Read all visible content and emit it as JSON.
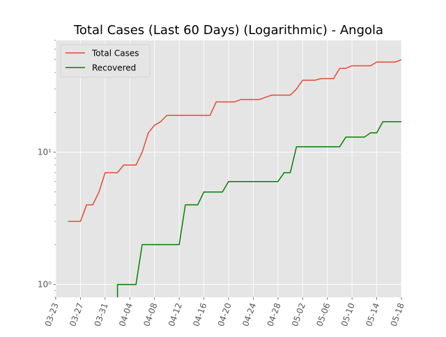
{
  "chart_data": {
    "type": "line",
    "title": "Total Cases (Last 60 Days) (Logarithmic) - Angola",
    "xlabel": "",
    "ylabel": "",
    "yscale": "log",
    "ylim": [
      0.8,
      70
    ],
    "xlim": [
      "2020-03-23",
      "2020-05-18"
    ],
    "grid": true,
    "legend": "top-left",
    "x_ticks": [
      "03-23",
      "03-27",
      "03-31",
      "04-04",
      "04-08",
      "04-12",
      "04-16",
      "04-20",
      "04-24",
      "04-28",
      "05-02",
      "05-06",
      "05-10",
      "05-14",
      "05-18"
    ],
    "y_ticks": [
      {
        "value": 1,
        "label": "10⁰"
      },
      {
        "value": 10,
        "label": "10¹"
      }
    ],
    "series": [
      {
        "name": "Total Cases",
        "color": "#E24A33",
        "points": [
          [
            "2020-03-25",
            3
          ],
          [
            "2020-03-27",
            3
          ],
          [
            "2020-03-28",
            4
          ],
          [
            "2020-03-29",
            4
          ],
          [
            "2020-03-30",
            5
          ],
          [
            "2020-03-31",
            7
          ],
          [
            "2020-04-02",
            7
          ],
          [
            "2020-04-03",
            8
          ],
          [
            "2020-04-05",
            8
          ],
          [
            "2020-04-06",
            10
          ],
          [
            "2020-04-07",
            14
          ],
          [
            "2020-04-08",
            16
          ],
          [
            "2020-04-09",
            17
          ],
          [
            "2020-04-10",
            19
          ],
          [
            "2020-04-17",
            19
          ],
          [
            "2020-04-18",
            24
          ],
          [
            "2020-04-21",
            24
          ],
          [
            "2020-04-22",
            25
          ],
          [
            "2020-04-25",
            25
          ],
          [
            "2020-04-26",
            26
          ],
          [
            "2020-04-27",
            27
          ],
          [
            "2020-04-30",
            27
          ],
          [
            "2020-05-01",
            30
          ],
          [
            "2020-05-02",
            35
          ],
          [
            "2020-05-04",
            35
          ],
          [
            "2020-05-05",
            36
          ],
          [
            "2020-05-07",
            36
          ],
          [
            "2020-05-08",
            43
          ],
          [
            "2020-05-09",
            43
          ],
          [
            "2020-05-10",
            45
          ],
          [
            "2020-05-13",
            45
          ],
          [
            "2020-05-14",
            48
          ],
          [
            "2020-05-17",
            48
          ],
          [
            "2020-05-18",
            50
          ],
          [
            "2020-05-19",
            52
          ],
          [
            "2020-05-20",
            52
          ],
          [
            "2020-05-21",
            58
          ]
        ]
      },
      {
        "name": "Recovered",
        "color": "#008000",
        "points": [
          [
            "2020-04-02",
            0.5
          ],
          [
            "2020-04-02",
            1
          ],
          [
            "2020-04-05",
            1
          ],
          [
            "2020-04-06",
            2
          ],
          [
            "2020-04-12",
            2
          ],
          [
            "2020-04-13",
            4
          ],
          [
            "2020-04-15",
            4
          ],
          [
            "2020-04-16",
            5
          ],
          [
            "2020-04-19",
            5
          ],
          [
            "2020-04-20",
            6
          ],
          [
            "2020-04-28",
            6
          ],
          [
            "2020-04-29",
            7
          ],
          [
            "2020-04-30",
            7
          ],
          [
            "2020-05-01",
            11
          ],
          [
            "2020-05-08",
            11
          ],
          [
            "2020-05-09",
            13
          ],
          [
            "2020-05-12",
            13
          ],
          [
            "2020-05-13",
            14
          ],
          [
            "2020-05-14",
            14
          ],
          [
            "2020-05-15",
            17
          ],
          [
            "2020-05-21",
            17
          ]
        ]
      }
    ]
  }
}
